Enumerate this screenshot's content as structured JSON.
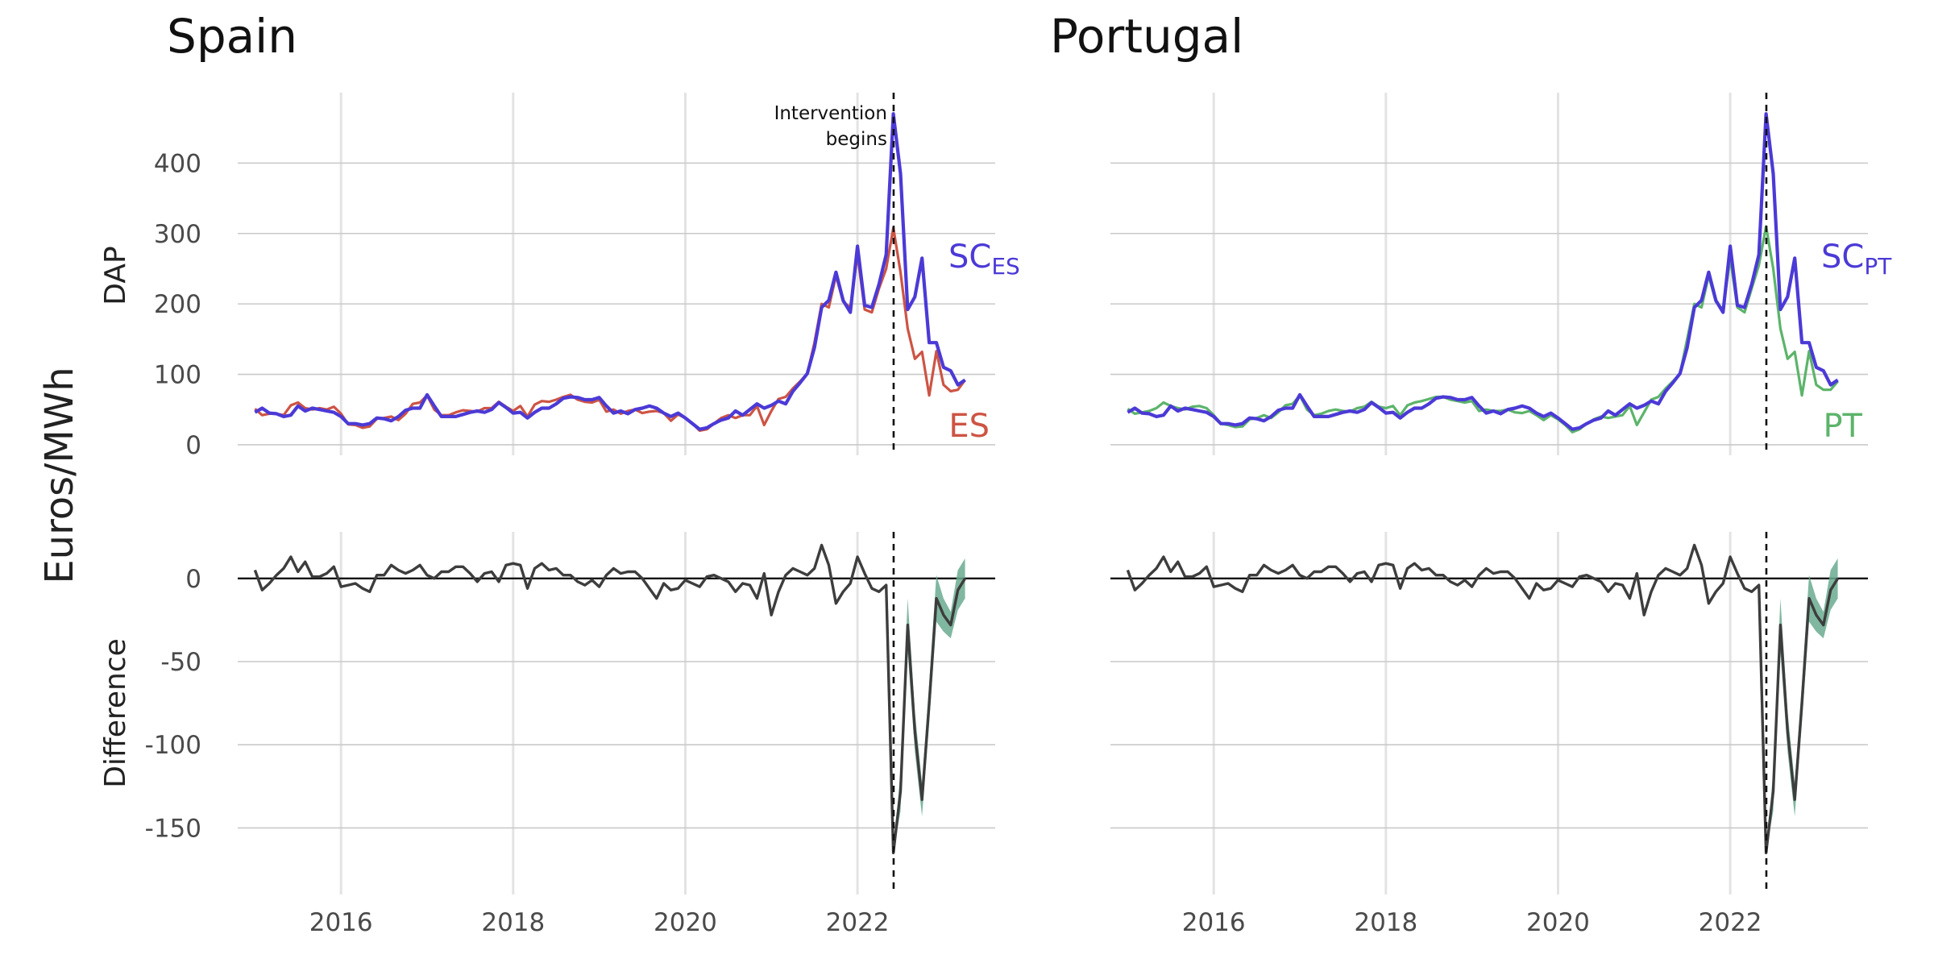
{
  "figure": {
    "y_axis_label": "Euros/MWh",
    "row_labels": [
      "DAP",
      "Difference"
    ],
    "annotation": [
      "Intervention",
      "begins"
    ],
    "intervention_x": 2022.42,
    "colors": {
      "synthetic": "#4b3ad6",
      "spain_actual": "#cd5444",
      "portugal_actual": "#5cb46a",
      "difference": "#3d3d3d",
      "ci_band": "#6aaa90"
    }
  },
  "chart_data": [
    {
      "type": "line",
      "panel": "top-left",
      "title": "Spain",
      "ylabel": "DAP",
      "xlim": [
        2014.8,
        2023.6
      ],
      "ylim": [
        -15,
        500
      ],
      "yticks": [
        0,
        100,
        200,
        300,
        400
      ],
      "xticks": [
        2016,
        2018,
        2020,
        2022
      ],
      "x_start": 2015.0,
      "x_step": 0.08333,
      "series": [
        {
          "name": "ES",
          "color": "#cd5444",
          "values": [
            51,
            42,
            44,
            44,
            42,
            56,
            60,
            52,
            50,
            52,
            50,
            54,
            44,
            29,
            28,
            24,
            26,
            37,
            38,
            40,
            35,
            44,
            58,
            60,
            70,
            50,
            42,
            42,
            46,
            49,
            48,
            47,
            52,
            52,
            61,
            54,
            48,
            55,
            40,
            57,
            62,
            61,
            64,
            68,
            71,
            64,
            61,
            60,
            64,
            47,
            50,
            44,
            48,
            50,
            45,
            47,
            48,
            45,
            34,
            43,
            38,
            30,
            20,
            22,
            30,
            38,
            42,
            38,
            42,
            42,
            55,
            28,
            48,
            65,
            68,
            80,
            90,
            101,
            145,
            200,
            195,
            240,
            203,
            195,
            270,
            192,
            188,
            222,
            250,
            308,
            245,
            165,
            122,
            132,
            70,
            133,
            85,
            76,
            78,
            92
          ]
        },
        {
          "name": "SC_ES",
          "label_main": "SC",
          "label_sub": "ES",
          "color": "#4b3ad6",
          "values": [
            46,
            52,
            45,
            44,
            40,
            42,
            55,
            48,
            52,
            50,
            48,
            46,
            40,
            30,
            30,
            28,
            30,
            38,
            37,
            34,
            40,
            49,
            52,
            52,
            71,
            55,
            40,
            40,
            40,
            43,
            46,
            48,
            46,
            50,
            60,
            53,
            45,
            46,
            38,
            46,
            52,
            52,
            58,
            66,
            68,
            67,
            64,
            64,
            67,
            55,
            45,
            48,
            44,
            50,
            52,
            55,
            52,
            45,
            40,
            45,
            38,
            30,
            22,
            24,
            30,
            35,
            38,
            48,
            42,
            50,
            58,
            52,
            56,
            62,
            58,
            76,
            88,
            101,
            138,
            195,
            205,
            245,
            205,
            188,
            282,
            198,
            195,
            228,
            270,
            470,
            385,
            192,
            210,
            265,
            145,
            145,
            110,
            105,
            85,
            92
          ]
        }
      ]
    },
    {
      "type": "line",
      "panel": "top-right",
      "title": "Portugal",
      "ylabel": "",
      "xlim": [
        2014.8,
        2023.6
      ],
      "ylim": [
        -15,
        500
      ],
      "yticks": [
        0,
        100,
        200,
        300,
        400
      ],
      "xticks": [
        2016,
        2018,
        2020,
        2022
      ],
      "x_start": 2015.0,
      "x_step": 0.08333,
      "series": [
        {
          "name": "PT",
          "color": "#5cb46a",
          "values": [
            51,
            44,
            46,
            48,
            52,
            60,
            55,
            52,
            50,
            54,
            55,
            52,
            42,
            30,
            28,
            25,
            26,
            36,
            38,
            42,
            38,
            46,
            56,
            58,
            70,
            50,
            42,
            44,
            48,
            50,
            48,
            47,
            52,
            54,
            61,
            54,
            52,
            55,
            42,
            56,
            60,
            62,
            65,
            68,
            68,
            64,
            62,
            60,
            62,
            48,
            50,
            48,
            48,
            50,
            46,
            45,
            48,
            42,
            35,
            42,
            36,
            28,
            18,
            22,
            30,
            36,
            40,
            38,
            40,
            42,
            55,
            28,
            46,
            64,
            68,
            80,
            90,
            101,
            150,
            200,
            195,
            240,
            203,
            192,
            265,
            195,
            188,
            222,
            255,
            310,
            250,
            165,
            122,
            132,
            70,
            133,
            85,
            78,
            78,
            90
          ]
        },
        {
          "name": "SC_PT",
          "label_main": "SC",
          "label_sub": "PT",
          "color": "#4b3ad6",
          "values": [
            46,
            52,
            45,
            44,
            40,
            42,
            55,
            48,
            52,
            50,
            48,
            46,
            40,
            30,
            30,
            28,
            30,
            38,
            37,
            34,
            40,
            49,
            52,
            52,
            71,
            55,
            40,
            40,
            40,
            43,
            46,
            48,
            46,
            50,
            60,
            53,
            45,
            46,
            38,
            46,
            52,
            52,
            58,
            66,
            68,
            67,
            64,
            64,
            67,
            55,
            45,
            48,
            44,
            50,
            52,
            55,
            52,
            45,
            40,
            45,
            38,
            30,
            22,
            24,
            30,
            35,
            38,
            48,
            42,
            50,
            58,
            52,
            56,
            62,
            58,
            76,
            88,
            101,
            138,
            195,
            205,
            245,
            205,
            188,
            282,
            198,
            195,
            228,
            270,
            470,
            385,
            192,
            210,
            265,
            145,
            145,
            110,
            105,
            85,
            92
          ]
        }
      ]
    },
    {
      "type": "line",
      "panel": "bottom-left",
      "title": "",
      "ylabel": "Difference",
      "xlim": [
        2014.8,
        2023.6
      ],
      "ylim": [
        -190,
        28
      ],
      "yticks": [
        0,
        -50,
        -100,
        -150
      ],
      "xticks": [
        2016,
        2018,
        2020,
        2022
      ],
      "x_start": 2015.0,
      "x_step": 0.08333,
      "series": [
        {
          "name": "Difference",
          "color": "#3d3d3d",
          "values": [
            5,
            -7,
            -3,
            2,
            6,
            13,
            4,
            10,
            1,
            1,
            3,
            7,
            -5,
            -4,
            -3,
            -6,
            -8,
            2,
            2,
            8,
            5,
            3,
            5,
            8,
            2,
            0,
            4,
            4,
            7,
            7,
            3,
            -2,
            3,
            4,
            -2,
            8,
            9,
            8,
            -6,
            6,
            9,
            5,
            6,
            2,
            2,
            -2,
            -4,
            -1,
            -5,
            2,
            6,
            3,
            4,
            4,
            0,
            -6,
            -12,
            -3,
            -7,
            -6,
            -1,
            -3,
            -5,
            1,
            2,
            0,
            -2,
            -8,
            -3,
            -4,
            -12,
            3,
            -22,
            -8,
            2,
            6,
            4,
            2,
            6,
            20,
            8,
            -15,
            -8,
            -3,
            13,
            3,
            -6,
            -8,
            -4,
            -165,
            -128,
            -28,
            -92,
            -133,
            -75,
            -12,
            -22,
            -28,
            -7,
            0
          ],
          "band_start_index": 88,
          "band_halfwidth": [
            0,
            0,
            12,
            16,
            12,
            10,
            12,
            14,
            10,
            8,
            12,
            12
          ]
        }
      ]
    },
    {
      "type": "line",
      "panel": "bottom-right",
      "title": "",
      "ylabel": "",
      "xlim": [
        2014.8,
        2023.6
      ],
      "ylim": [
        -190,
        28
      ],
      "yticks": [
        0,
        -50,
        -100,
        -150
      ],
      "xticks": [
        2016,
        2018,
        2020,
        2022
      ],
      "x_start": 2015.0,
      "x_step": 0.08333,
      "series": [
        {
          "name": "Difference",
          "color": "#3d3d3d",
          "values": [
            5,
            -7,
            -3,
            2,
            6,
            13,
            4,
            10,
            1,
            1,
            3,
            7,
            -5,
            -4,
            -3,
            -6,
            -8,
            2,
            2,
            8,
            5,
            3,
            5,
            8,
            2,
            0,
            4,
            4,
            7,
            7,
            3,
            -2,
            3,
            4,
            -2,
            8,
            9,
            8,
            -6,
            6,
            9,
            5,
            6,
            2,
            2,
            -2,
            -4,
            -1,
            -5,
            2,
            6,
            3,
            4,
            4,
            0,
            -6,
            -12,
            -3,
            -7,
            -6,
            -1,
            -3,
            -5,
            1,
            2,
            0,
            -2,
            -8,
            -3,
            -4,
            -12,
            3,
            -22,
            -8,
            2,
            6,
            4,
            2,
            6,
            20,
            8,
            -15,
            -8,
            -3,
            13,
            3,
            -6,
            -8,
            -4,
            -165,
            -128,
            -28,
            -92,
            -133,
            -75,
            -12,
            -22,
            -28,
            -7,
            0
          ],
          "band_start_index": 88,
          "band_halfwidth": [
            0,
            0,
            12,
            16,
            12,
            10,
            12,
            14,
            10,
            8,
            12,
            12
          ]
        }
      ]
    }
  ]
}
